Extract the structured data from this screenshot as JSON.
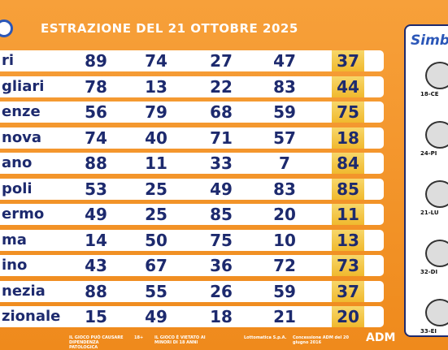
{
  "header": {
    "title": "ESTRAZIONE DEL 21 OTTOBRE 2025"
  },
  "table": {
    "rows": [
      [
        "ri",
        89,
        74,
        27,
        47,
        37
      ],
      [
        "gliari",
        78,
        13,
        22,
        83,
        44
      ],
      [
        "enze",
        56,
        79,
        68,
        59,
        75
      ],
      [
        "nova",
        74,
        40,
        71,
        57,
        18
      ],
      [
        "ano",
        88,
        11,
        33,
        7,
        84
      ],
      [
        "poli",
        53,
        25,
        49,
        83,
        85
      ],
      [
        "ermo",
        49,
        25,
        85,
        20,
        11
      ],
      [
        "ma",
        14,
        50,
        75,
        10,
        13
      ],
      [
        "ino",
        43,
        67,
        36,
        72,
        73
      ],
      [
        "nezia",
        88,
        55,
        26,
        59,
        37
      ],
      [
        "zionale",
        15,
        49,
        18,
        21,
        20
      ]
    ]
  },
  "side_panel": {
    "title": "Simbo",
    "items": [
      "18-CE",
      "24-PI",
      "21-LU",
      "32-DI",
      "33-EI"
    ]
  },
  "footer": {
    "items": [
      "IL GIOCO PUÒ CAUSARE DIPENDENZA PATOLOGICA",
      "18+",
      "IL GIOCO È VIETATO AI MINORI DI 18 ANNI",
      "Lottomatica S.p.A.",
      "Concessione ADM del 20 giugno 2016",
      "ADM"
    ]
  }
}
